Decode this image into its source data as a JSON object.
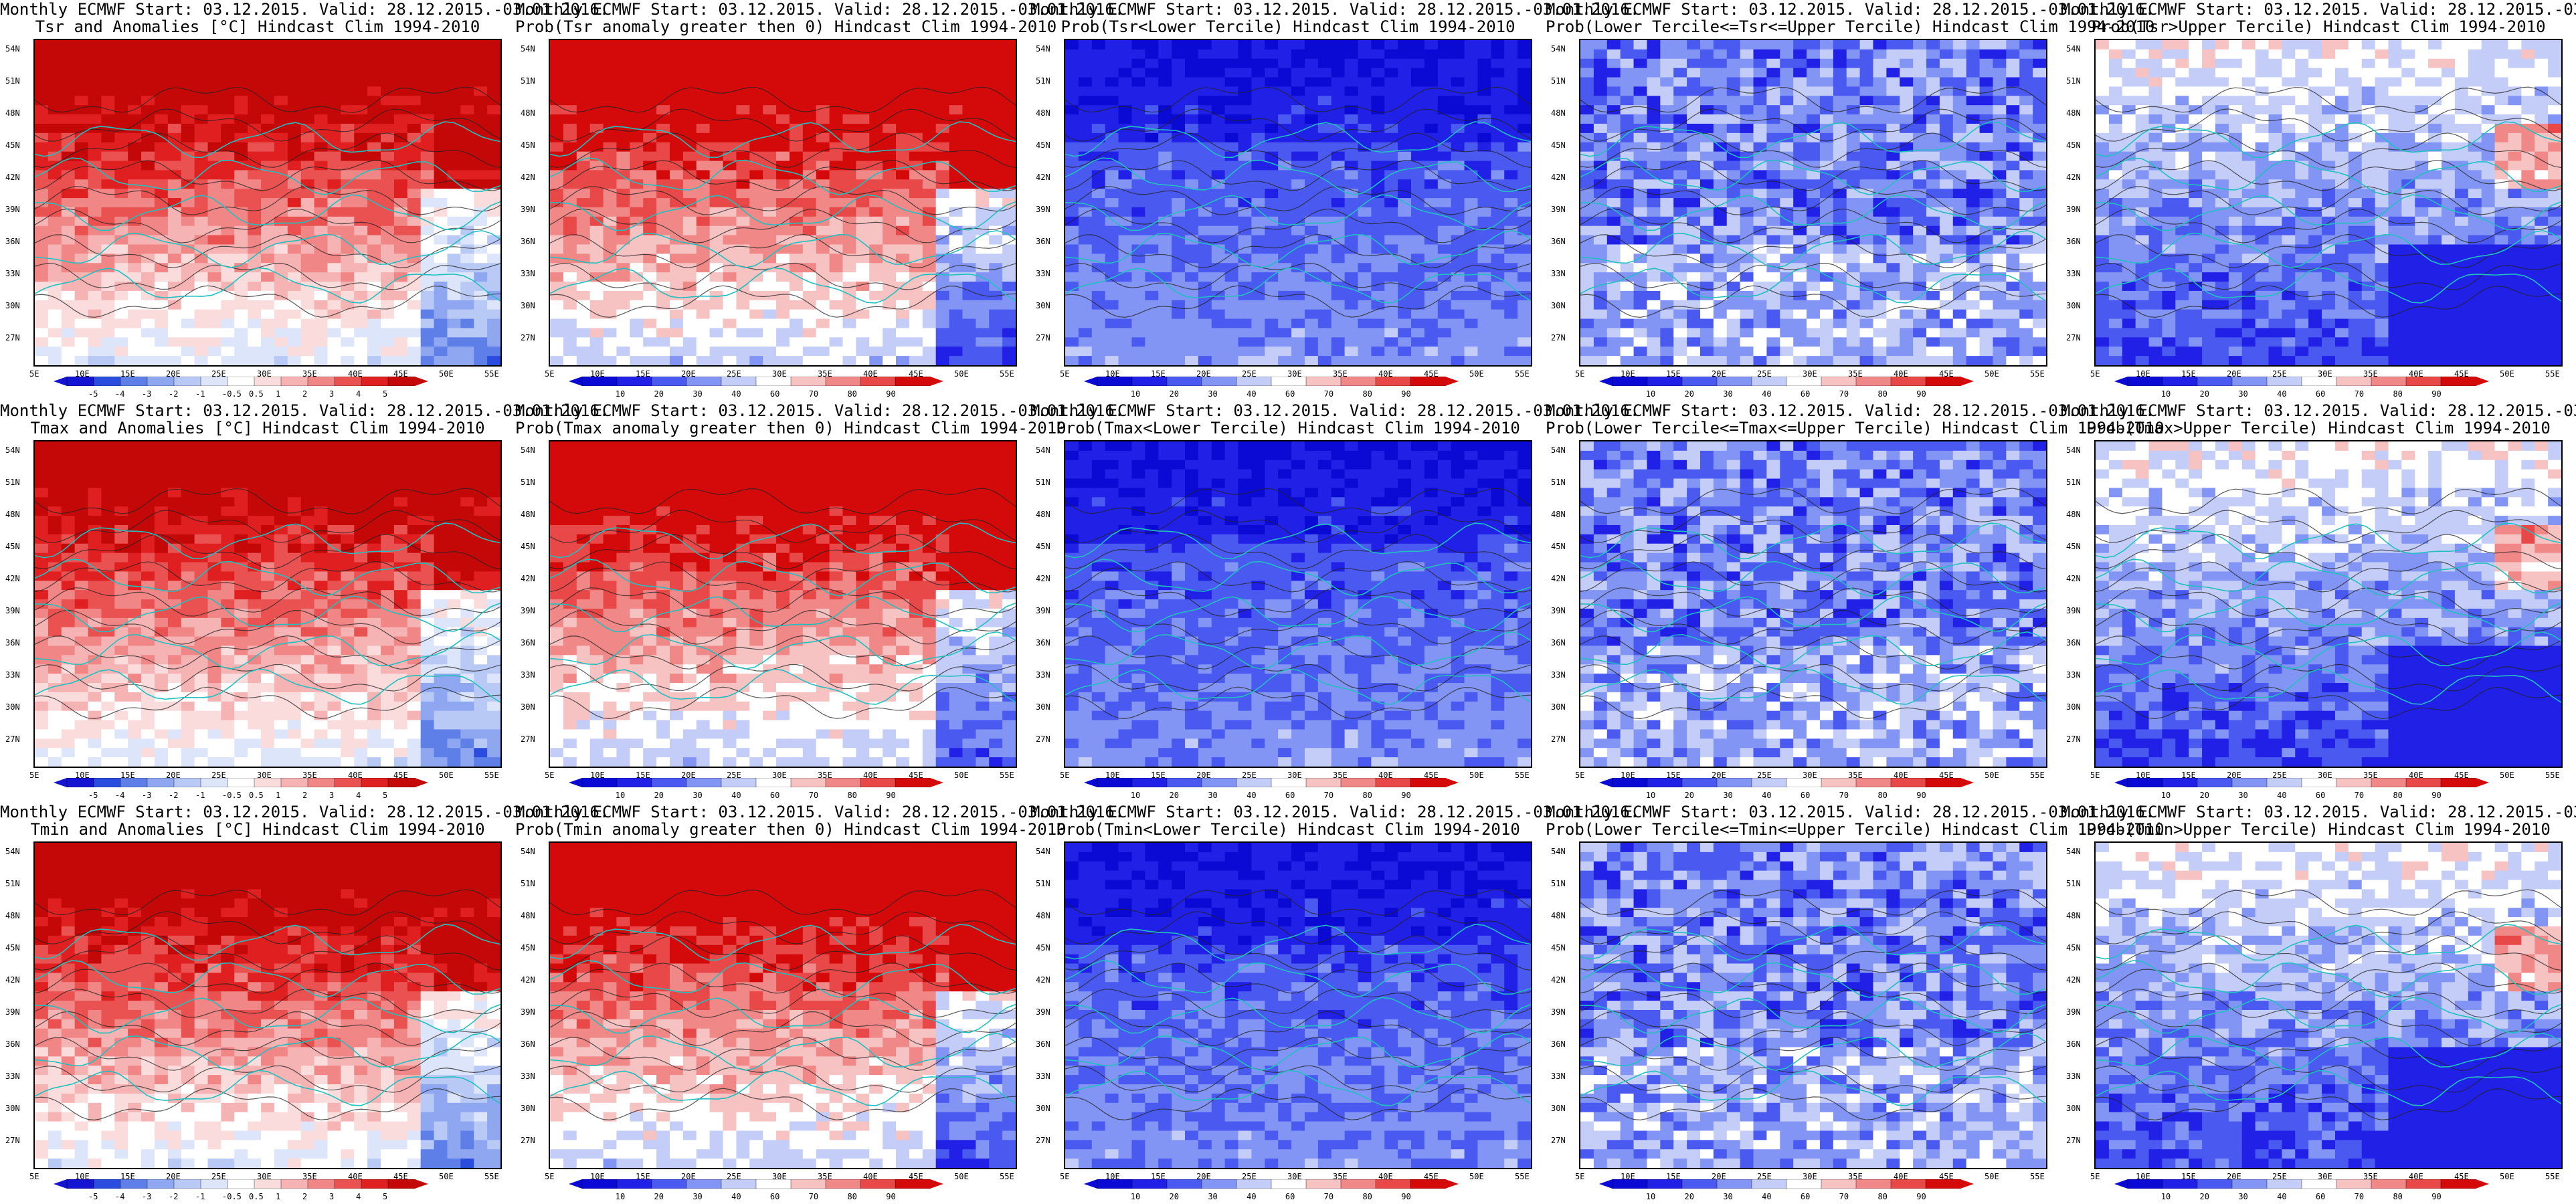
{
  "start_line": "Monthly ECMWF Start: 03.12.2015. Valid: 28.12.2015.-03.01.2016.",
  "panels": [
    {
      "sub": "Tsr and Anomalies [°C] Hindcast Clim 1994-2010",
      "kind": "anom"
    },
    {
      "sub": "Prob(Tsr anomaly greater then 0) Hindcast Clim 1994-2010",
      "kind": "prob0"
    },
    {
      "sub": "Prob(Tsr<Lower Tercile) Hindcast Clim 1994-2010",
      "kind": "lower"
    },
    {
      "sub": "Prob(Lower Tercile<=Tsr<=Upper Tercile) Hindcast Clim 1994-2010",
      "kind": "middle"
    },
    {
      "sub": "Prob(Tsr>Upper Tercile) Hindcast Clim 1994-2010",
      "kind": "upper"
    },
    {
      "sub": "Tmax and Anomalies [°C] Hindcast Clim 1994-2010",
      "kind": "anom"
    },
    {
      "sub": "Prob(Tmax anomaly greater then 0) Hindcast Clim 1994-2010",
      "kind": "prob0"
    },
    {
      "sub": "Prob(Tmax<Lower Tercile) Hindcast Clim 1994-2010",
      "kind": "lower"
    },
    {
      "sub": "Prob(Lower Tercile<=Tmax<=Upper Tercile) Hindcast Clim 1994-2010",
      "kind": "middle"
    },
    {
      "sub": "Prob(Tmax>Upper Tercile) Hindcast Clim 1994-2010",
      "kind": "upper"
    },
    {
      "sub": "Tmin and Anomalies [°C] Hindcast Clim 1994-2010",
      "kind": "anom"
    },
    {
      "sub": "Prob(Tmin anomaly greater then 0) Hindcast Clim 1994-2010",
      "kind": "prob0"
    },
    {
      "sub": "Prob(Tmin<Lower Tercile) Hindcast Clim 1994-2010",
      "kind": "lower"
    },
    {
      "sub": "Prob(Lower Tercile<=Tmin<=Upper Tercile) Hindcast Clim 1994-2010",
      "kind": "middle"
    },
    {
      "sub": "Prob(Tmin>Upper Tercile) Hindcast Clim 1994-2010",
      "kind": "upper"
    }
  ],
  "lat_labels": [
    "54N",
    "51N",
    "48N",
    "45N",
    "42N",
    "39N",
    "36N",
    "33N",
    "30N",
    "27N"
  ],
  "lon_labels": [
    "5E",
    "10E",
    "15E",
    "20E",
    "25E",
    "30E",
    "35E",
    "40E",
    "45E",
    "50E",
    "55E"
  ],
  "anom_ticks": [
    "-5",
    "-4",
    "-3",
    "-2",
    "-1",
    "-0.5",
    "0.5",
    "1",
    "2",
    "3",
    "4",
    "5"
  ],
  "prob_ticks": [
    "10",
    "20",
    "30",
    "40",
    "60",
    "70",
    "80",
    "90"
  ],
  "colors": {
    "anom_scale": [
      "#1414d2",
      "#2a4de0",
      "#5f7fe8",
      "#8ea7f0",
      "#b9c9f5",
      "#dde5fa",
      "#ffffff",
      "#fbdcdc",
      "#f6b3b3",
      "#f18686",
      "#ea5252",
      "#e02020",
      "#c40808"
    ],
    "prob_scale": [
      "#0a0ad4",
      "#2020e6",
      "#4a5af0",
      "#8294f4",
      "#c4cdf8",
      "#ffffff",
      "#f6c2c2",
      "#f08888",
      "#e84848",
      "#d40a0a"
    ],
    "coast": "#20c0c0",
    "contour": "#222222"
  }
}
